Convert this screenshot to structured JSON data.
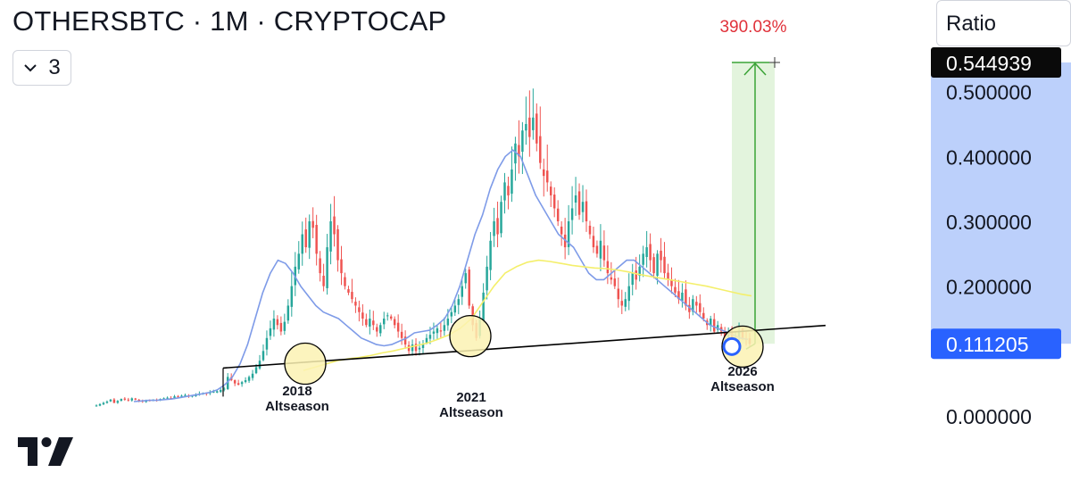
{
  "header": {
    "title": "OTHERSBTC · 1M · CRYPTOCAP",
    "legend_count": "3",
    "scale_button": "Ratio"
  },
  "colors": {
    "up": "#26a69a",
    "down": "#ef5350",
    "ma_fast": "#7e9be8",
    "ma_slow": "#f4ef6b",
    "axis_band": "#bcd0fb",
    "current_price_badge": "#2962ff",
    "target_price_badge": "#0a0a0a",
    "measure_fill": "#e3f4dd",
    "measure_line": "#3aa336",
    "measure_text": "#e0313a",
    "circle_fill": "#fbf2b3"
  },
  "chart_data": {
    "type": "candlestick",
    "title": "OTHERSBTC · 1M · CRYPTOCAP",
    "xlabel": "",
    "ylabel": "",
    "ylim": [
      0.0,
      0.56
    ],
    "y_ticks": [
      "0.500000",
      "0.400000",
      "0.300000",
      "0.200000",
      "0.000000"
    ],
    "current_price": "0.111205",
    "target_price": "0.544939",
    "measure": {
      "label": "390.03%",
      "from": 0.111205,
      "to": 0.544939
    },
    "annotations": [
      {
        "year": "2018",
        "label": "Altseason",
        "value": 0.108
      },
      {
        "year": "2021",
        "label": "Altseason",
        "value": 0.123
      },
      {
        "year": "2026",
        "label": "Altseason",
        "value": 0.111
      }
    ],
    "support_line": {
      "from_value": 0.071,
      "to_value": 0.167
    },
    "price_path": [
      0.016,
      0.018,
      0.02,
      0.022,
      0.025,
      0.02,
      0.023,
      0.026,
      0.025,
      0.024,
      0.027,
      0.025,
      0.023,
      0.022,
      0.024,
      0.023,
      0.025,
      0.024,
      0.026,
      0.027,
      0.028,
      0.027,
      0.03,
      0.029,
      0.031,
      0.032,
      0.03,
      0.031,
      0.033,
      0.034,
      0.035,
      0.034,
      0.036,
      0.037,
      0.038,
      0.04,
      0.042,
      0.06,
      0.055,
      0.05,
      0.048,
      0.052,
      0.055,
      0.06,
      0.065,
      0.075,
      0.085,
      0.1,
      0.12,
      0.135,
      0.15,
      0.14,
      0.13,
      0.145,
      0.17,
      0.2,
      0.23,
      0.25,
      0.28,
      0.26,
      0.3,
      0.29,
      0.25,
      0.22,
      0.2,
      0.26,
      0.3,
      0.28,
      0.24,
      0.22,
      0.2,
      0.19,
      0.18,
      0.17,
      0.16,
      0.15,
      0.14,
      0.15,
      0.14,
      0.13,
      0.14,
      0.15,
      0.155,
      0.15,
      0.14,
      0.13,
      0.12,
      0.11,
      0.1,
      0.11,
      0.1,
      0.105,
      0.11,
      0.12,
      0.125,
      0.13,
      0.135,
      0.13,
      0.14,
      0.15,
      0.16,
      0.17,
      0.18,
      0.2,
      0.22,
      0.17,
      0.14,
      0.12,
      0.15,
      0.19,
      0.23,
      0.27,
      0.3,
      0.28,
      0.33,
      0.36,
      0.34,
      0.38,
      0.42,
      0.4,
      0.44,
      0.45,
      0.43,
      0.46,
      0.42,
      0.39,
      0.37,
      0.36,
      0.34,
      0.32,
      0.3,
      0.28,
      0.26,
      0.3,
      0.32,
      0.34,
      0.31,
      0.33,
      0.3,
      0.28,
      0.26,
      0.25,
      0.27,
      0.24,
      0.22,
      0.21,
      0.2,
      0.18,
      0.17,
      0.18,
      0.2,
      0.22,
      0.21,
      0.23,
      0.25,
      0.26,
      0.24,
      0.22,
      0.25,
      0.24,
      0.22,
      0.21,
      0.2,
      0.19,
      0.18,
      0.19,
      0.17,
      0.16,
      0.18,
      0.17,
      0.16,
      0.15,
      0.14,
      0.15,
      0.13,
      0.14,
      0.13,
      0.12,
      0.125,
      0.115,
      0.12,
      0.13,
      0.12,
      0.118,
      0.111
    ],
    "ma_fast_path": [
      0.022,
      0.023,
      0.024,
      0.024,
      0.025,
      0.026,
      0.028,
      0.03,
      0.032,
      0.034,
      0.036,
      0.04,
      0.048,
      0.06,
      0.08,
      0.11,
      0.15,
      0.19,
      0.22,
      0.24,
      0.235,
      0.22,
      0.2,
      0.185,
      0.17,
      0.16,
      0.155,
      0.15,
      0.14,
      0.13,
      0.12,
      0.115,
      0.11,
      0.108,
      0.11,
      0.115,
      0.12,
      0.128,
      0.13,
      0.132,
      0.14,
      0.15,
      0.17,
      0.2,
      0.24,
      0.28,
      0.31,
      0.35,
      0.38,
      0.4,
      0.41,
      0.4,
      0.37,
      0.34,
      0.32,
      0.3,
      0.28,
      0.27,
      0.26,
      0.24,
      0.22,
      0.21,
      0.21,
      0.22,
      0.23,
      0.24,
      0.24,
      0.23,
      0.22,
      0.21,
      0.2,
      0.19,
      0.18,
      0.17,
      0.16,
      0.15,
      0.14,
      0.135,
      0.13,
      0.125,
      0.12,
      0.118
    ],
    "ma_slow_path": [
      0.07,
      0.075,
      0.08,
      0.085,
      0.088,
      0.09,
      0.093,
      0.097,
      0.1,
      0.104,
      0.108,
      0.112,
      0.118,
      0.125,
      0.135,
      0.15,
      0.175,
      0.2,
      0.22,
      0.23,
      0.237,
      0.24,
      0.238,
      0.235,
      0.232,
      0.23,
      0.228,
      0.227,
      0.225,
      0.222,
      0.218,
      0.215,
      0.212,
      0.209,
      0.206,
      0.203,
      0.2,
      0.196,
      0.192,
      0.188,
      0.185
    ]
  }
}
